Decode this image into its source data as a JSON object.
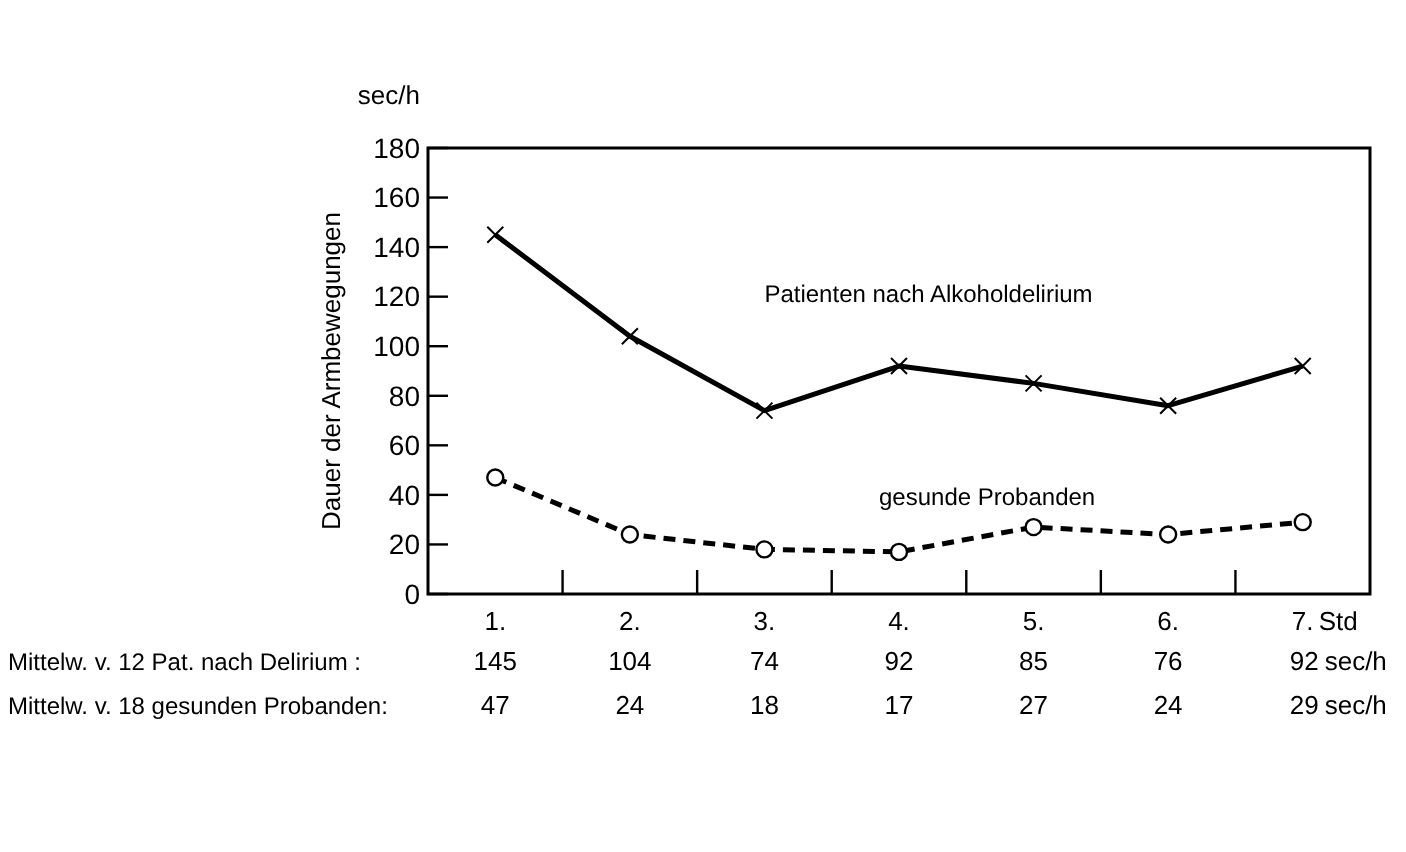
{
  "chart_data": {
    "type": "line",
    "ylabel": "Dauer der Armbewegungen",
    "xlabel": "Std",
    "categories": [
      "1.",
      "2.",
      "3.",
      "4.",
      "5.",
      "6.",
      "7."
    ],
    "series": [
      {
        "name": "Patienten nach Alkoholdelirium",
        "color": "#000000",
        "values": [
          145,
          104,
          74,
          92,
          85,
          76,
          92
        ],
        "marker": "cross",
        "line_style": "solid"
      },
      {
        "name": "gesunde Probanden",
        "color": "#000000",
        "values": [
          47,
          24,
          18,
          17,
          27,
          24,
          29
        ],
        "marker": "circle",
        "line_style": "dashed"
      }
    ],
    "ylim": [
      0,
      180
    ],
    "yticks": [
      0,
      20,
      40,
      60,
      80,
      100,
      120,
      140,
      160,
      180
    ],
    "grid": false,
    "data_labels": true,
    "annotations": [
      "sec/h",
      "Mittelw. v. 12 Pat. nach Delirium :",
      "Mittelw. v. 18 gesunden Probanden:",
      "sec/h",
      "sec/h"
    ]
  }
}
